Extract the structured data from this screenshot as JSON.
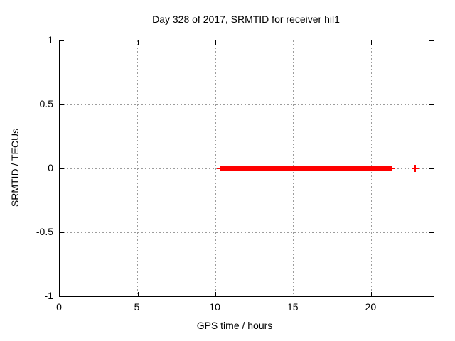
{
  "chart_data": {
    "type": "scatter",
    "title": "Day 328 of 2017, SRMTID for receiver hil1",
    "xlabel": "GPS time / hours",
    "ylabel": "SRMTID / TECUs",
    "xlim": [
      0,
      24
    ],
    "ylim": [
      -1,
      1
    ],
    "xticks": [
      0,
      5,
      10,
      15,
      20
    ],
    "xtick_labels": [
      "0",
      "5",
      "10",
      "15",
      "20"
    ],
    "yticks": [
      1,
      0.5,
      0,
      -0.5,
      -1
    ],
    "ytick_labels": [
      "1",
      "0.5",
      "0",
      "-0.5",
      "-1"
    ],
    "grid": true,
    "legend": "none",
    "marker": "+",
    "series": [
      {
        "name": "SRMTID",
        "color": "#ff0000",
        "marker": "+",
        "dense_segments": [
          {
            "x_start": 10.3,
            "x_end": 21.3,
            "y": 0
          }
        ],
        "points": [
          {
            "x": 22.8,
            "y": 0
          }
        ]
      }
    ],
    "colors": {
      "background": "#ffffff",
      "border": "#000000",
      "grid": "#9c9c9c",
      "series": "#ff0000",
      "text": "#000000"
    }
  }
}
